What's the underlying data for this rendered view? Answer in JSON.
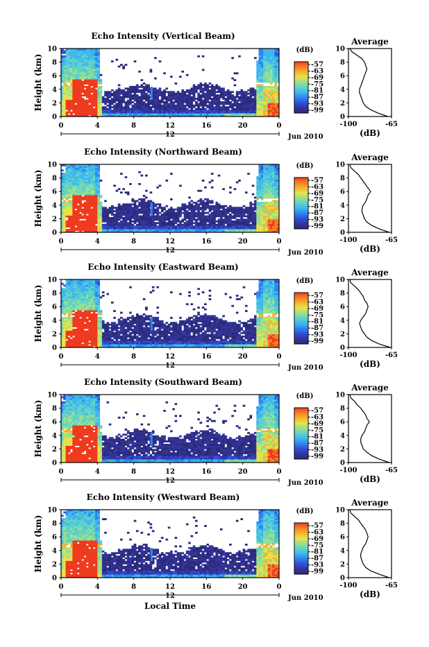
{
  "figure": {
    "xlabel": "Local Time",
    "date_label": "Jun 2010",
    "noon_label": "12",
    "colorbar_unit": "(dB)",
    "profile_title": "Average",
    "profile_xlabel": "(dB)"
  },
  "colors": {
    "scale": [
      "#2b2b7a",
      "#34349a",
      "#2f4fd8",
      "#2c86f0",
      "#3fb7ee",
      "#5fd2c9",
      "#9be08c",
      "#e6e24a",
      "#f6b32d",
      "#f57f25",
      "#ef3b1f"
    ]
  },
  "chart_data": [
    {
      "type": "heatmap",
      "title": "Echo Intensity (Vertical Beam)",
      "xlabel": "Local Time",
      "ylabel": "Height (km)",
      "xticks": [
        "0",
        "4",
        "8",
        "12",
        "16",
        "20",
        "0"
      ],
      "yticks": [
        "0",
        "2",
        "4",
        "6",
        "8",
        "10"
      ],
      "xlim": [
        0,
        24
      ],
      "ylim": [
        0,
        10
      ],
      "colorbar": {
        "label": "(dB)",
        "ticks": [
          "-57",
          "-63",
          "-69",
          "-75",
          "-81",
          "-87",
          "-93",
          "-99"
        ]
      },
      "profile": {
        "title": "Average",
        "xlabel": "(dB)",
        "xticks": [
          "-100",
          "-65"
        ],
        "xlim": [
          -100,
          -65
        ],
        "heights": [
          0,
          0.5,
          1,
          1.5,
          2,
          2.5,
          3,
          3.5,
          4,
          4.5,
          5,
          5.5,
          6,
          6.5,
          7,
          7.5,
          8,
          8.5,
          9,
          9.5,
          10
        ],
        "values": [
          -68,
          -76,
          -82,
          -86,
          -88,
          -89,
          -90,
          -91,
          -91,
          -90,
          -89,
          -88,
          -87,
          -86,
          -85,
          -86,
          -87,
          -89,
          -93,
          -97,
          -99
        ]
      }
    },
    {
      "type": "heatmap",
      "title": "Echo Intensity (Northward Beam)",
      "xlabel": "Local Time",
      "ylabel": "Height (km)",
      "xticks": [
        "0",
        "4",
        "8",
        "12",
        "16",
        "20",
        "0"
      ],
      "yticks": [
        "0",
        "2",
        "4",
        "6",
        "8",
        "10"
      ],
      "xlim": [
        0,
        24
      ],
      "ylim": [
        0,
        10
      ],
      "colorbar": {
        "label": "(dB)",
        "ticks": [
          "-57",
          "-63",
          "-69",
          "-75",
          "-81",
          "-87",
          "-93",
          "-99"
        ]
      },
      "profile": {
        "title": "Average",
        "xlabel": "(dB)",
        "xticks": [
          "-100",
          "-65"
        ],
        "xlim": [
          -100,
          -65
        ],
        "heights": [
          0,
          0.5,
          1,
          1.5,
          2,
          2.5,
          3,
          3.5,
          4,
          4.5,
          5,
          5.5,
          6,
          6.5,
          7,
          7.5,
          8,
          8.5,
          9,
          9.5,
          10
        ],
        "values": [
          -67,
          -75,
          -81,
          -85,
          -87,
          -88,
          -89,
          -89,
          -88,
          -86,
          -85,
          -84,
          -82,
          -84,
          -86,
          -88,
          -90,
          -92,
          -95,
          -98,
          -99
        ]
      }
    },
    {
      "type": "heatmap",
      "title": "Echo Intensity (Eastward Beam)",
      "xlabel": "Local Time",
      "ylabel": "Height (km)",
      "xticks": [
        "0",
        "4",
        "8",
        "12",
        "16",
        "20",
        "0"
      ],
      "yticks": [
        "0",
        "2",
        "4",
        "6",
        "8",
        "10"
      ],
      "xlim": [
        0,
        24
      ],
      "ylim": [
        0,
        10
      ],
      "colorbar": {
        "label": "(dB)",
        "ticks": [
          "-57",
          "-63",
          "-69",
          "-75",
          "-81",
          "-87",
          "-93",
          "-99"
        ]
      },
      "profile": {
        "title": "Average",
        "xlabel": "(dB)",
        "xticks": [
          "-100",
          "-65"
        ],
        "xlim": [
          -100,
          -65
        ],
        "heights": [
          0,
          0.5,
          1,
          1.5,
          2,
          2.5,
          3,
          3.5,
          4,
          4.5,
          5,
          5.5,
          6,
          6.5,
          7,
          7.5,
          8,
          8.5,
          9,
          9.5,
          10
        ],
        "values": [
          -66,
          -75,
          -81,
          -85,
          -87,
          -89,
          -90,
          -91,
          -90,
          -88,
          -86,
          -85,
          -84,
          -85,
          -87,
          -88,
          -90,
          -92,
          -95,
          -98,
          -99
        ]
      }
    },
    {
      "type": "heatmap",
      "title": "Echo Intensity (Southward Beam)",
      "xlabel": "Local Time",
      "ylabel": "Height (km)",
      "xticks": [
        "0",
        "4",
        "8",
        "12",
        "16",
        "20",
        "0"
      ],
      "yticks": [
        "0",
        "2",
        "4",
        "6",
        "8",
        "10"
      ],
      "xlim": [
        0,
        24
      ],
      "ylim": [
        0,
        10
      ],
      "colorbar": {
        "label": "(dB)",
        "ticks": [
          "-57",
          "-63",
          "-69",
          "-75",
          "-81",
          "-87",
          "-93",
          "-99"
        ]
      },
      "profile": {
        "title": "Average",
        "xlabel": "(dB)",
        "xticks": [
          "-100",
          "-65"
        ],
        "xlim": [
          -100,
          -65
        ],
        "heights": [
          0,
          0.5,
          1,
          1.5,
          2,
          2.5,
          3,
          3.5,
          4,
          4.5,
          5,
          5.5,
          6,
          6.5,
          7,
          7.5,
          8,
          8.5,
          9,
          9.5,
          10
        ],
        "values": [
          -67,
          -75,
          -81,
          -85,
          -88,
          -89,
          -90,
          -90,
          -89,
          -87,
          -86,
          -85,
          -83,
          -85,
          -86,
          -88,
          -90,
          -93,
          -95,
          -98,
          -99
        ]
      }
    },
    {
      "type": "heatmap",
      "title": "Echo Intensity (Westward Beam)",
      "xlabel": "Local Time",
      "ylabel": "Height (km)",
      "xticks": [
        "0",
        "4",
        "8",
        "12",
        "16",
        "20",
        "0"
      ],
      "yticks": [
        "0",
        "2",
        "4",
        "6",
        "8",
        "10"
      ],
      "xlim": [
        0,
        24
      ],
      "ylim": [
        0,
        10
      ],
      "colorbar": {
        "label": "(dB)",
        "ticks": [
          "-57",
          "-63",
          "-69",
          "-75",
          "-81",
          "-87",
          "-93",
          "-99"
        ]
      },
      "profile": {
        "title": "Average",
        "xlabel": "(dB)",
        "xticks": [
          "-100",
          "-65"
        ],
        "xlim": [
          -100,
          -65
        ],
        "heights": [
          0,
          0.5,
          1,
          1.5,
          2,
          2.5,
          3,
          3.5,
          4,
          4.5,
          5,
          5.5,
          6,
          6.5,
          7,
          7.5,
          8,
          8.5,
          9,
          9.5,
          10
        ],
        "values": [
          -67,
          -75,
          -82,
          -86,
          -88,
          -89,
          -90,
          -90,
          -89,
          -88,
          -86,
          -85,
          -84,
          -85,
          -86,
          -88,
          -90,
          -92,
          -95,
          -98,
          -99
        ]
      }
    }
  ]
}
